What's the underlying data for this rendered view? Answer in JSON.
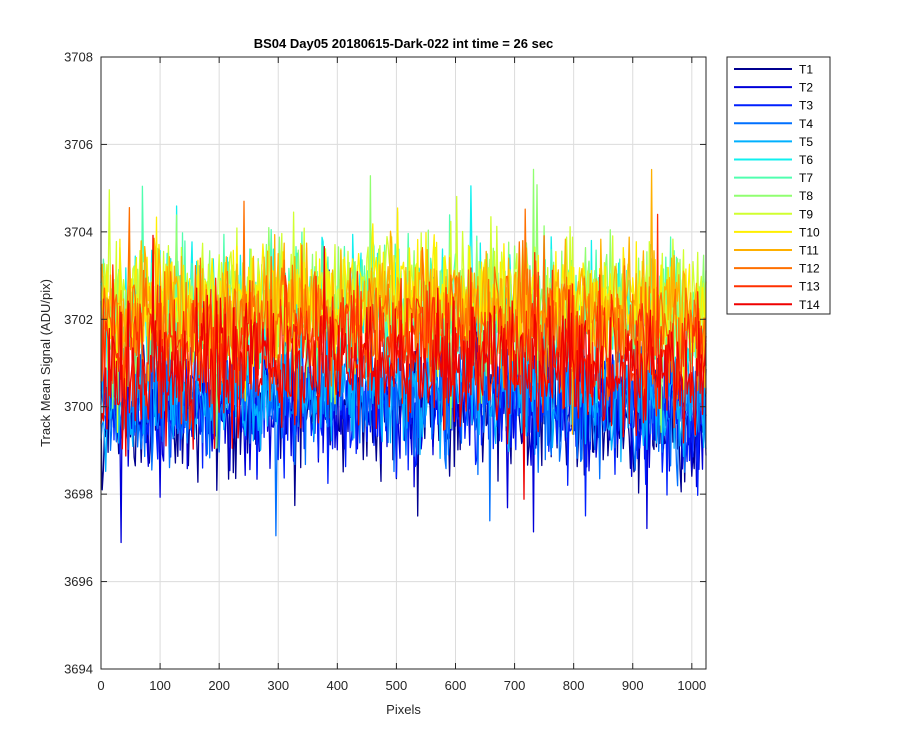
{
  "chart_data": {
    "type": "line",
    "title": "BS04 Day05 20180615-Dark-022 int time = 26 sec",
    "xlabel": "Pixels",
    "ylabel": "Track Mean Signal (ADU/pix)",
    "xlim": [
      0,
      1024
    ],
    "ylim": [
      3694,
      3708
    ],
    "xticks": [
      0,
      100,
      200,
      300,
      400,
      500,
      600,
      700,
      800,
      900,
      1000
    ],
    "yticks": [
      3694,
      3696,
      3698,
      3700,
      3702,
      3704,
      3706,
      3708
    ],
    "grid": true,
    "legend_position": "outside-top-right",
    "noise_amplitude": 1.3,
    "series": [
      {
        "name": "T1",
        "color": "#00008f",
        "mean": 3700.0
      },
      {
        "name": "T2",
        "color": "#0000d9",
        "mean": 3700.1
      },
      {
        "name": "T3",
        "color": "#0020ff",
        "mean": 3700.2
      },
      {
        "name": "T4",
        "color": "#0070ff",
        "mean": 3700.3
      },
      {
        "name": "T5",
        "color": "#00b0ff",
        "mean": 3700.5
      },
      {
        "name": "T6",
        "color": "#10f0ef",
        "mean": 3702.2
      },
      {
        "name": "T7",
        "color": "#50ffaf",
        "mean": 3702.3
      },
      {
        "name": "T8",
        "color": "#90ff70",
        "mean": 3702.4
      },
      {
        "name": "T9",
        "color": "#d0ff30",
        "mean": 3702.6
      },
      {
        "name": "T10",
        "color": "#ffef00",
        "mean": 3702.5
      },
      {
        "name": "T11",
        "color": "#ffb000",
        "mean": 3702.4
      },
      {
        "name": "T12",
        "color": "#ff7000",
        "mean": 3702.0
      },
      {
        "name": "T13",
        "color": "#ff3000",
        "mean": 3701.5
      },
      {
        "name": "T14",
        "color": "#ef0000",
        "mean": 3701.0
      }
    ]
  }
}
